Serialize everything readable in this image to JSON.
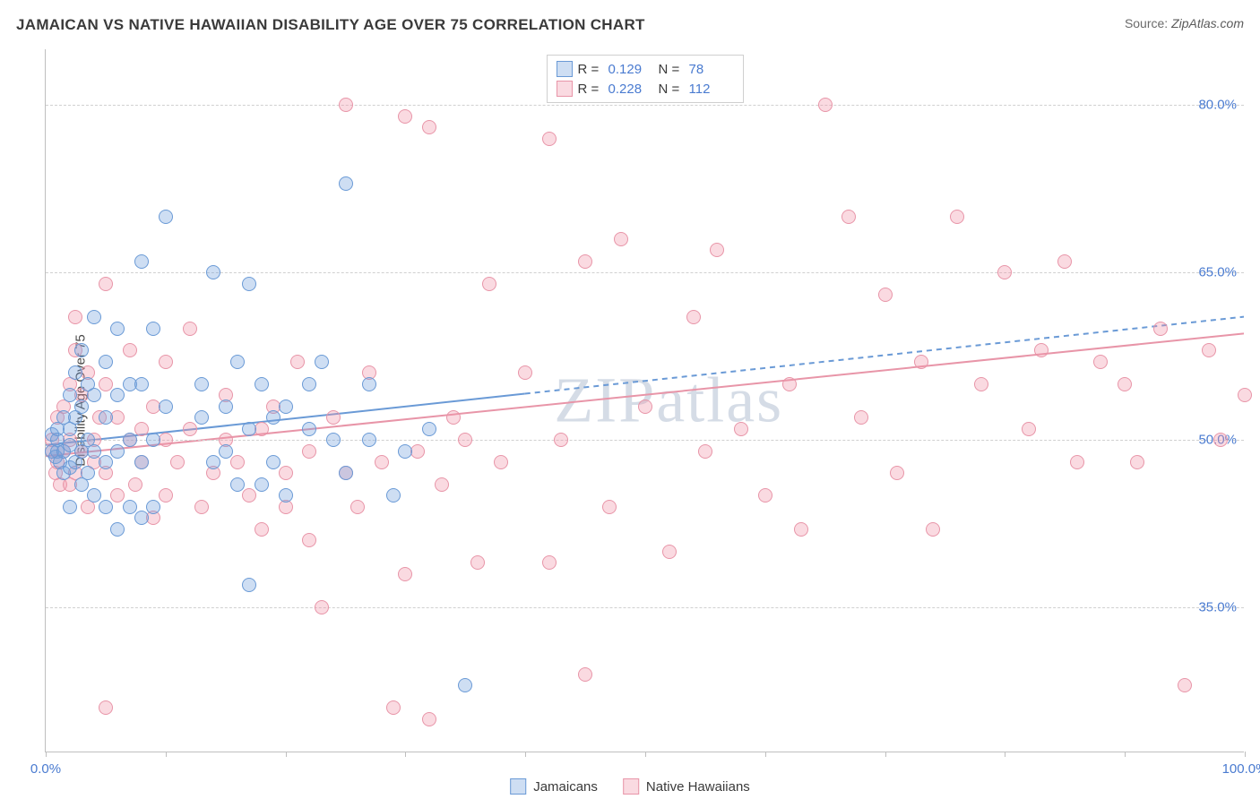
{
  "title": "JAMAICAN VS NATIVE HAWAIIAN DISABILITY AGE OVER 75 CORRELATION CHART",
  "source_label": "Source:",
  "source_value": "ZipAtlas.com",
  "watermark": "ZIPatlas",
  "ylabel": "Disability Age Over 75",
  "chart": {
    "type": "scatter",
    "background_color": "#ffffff",
    "grid_color": "#d0d0d0",
    "axis_color": "#bfbfbf",
    "tick_font_color": "#4a7bd0",
    "tick_fontsize": 15,
    "title_fontsize": 17,
    "label_fontsize": 15,
    "xlim": [
      0,
      100
    ],
    "ylim": [
      22,
      85
    ],
    "x_ticks": [
      0,
      10,
      20,
      30,
      40,
      50,
      60,
      70,
      80,
      90,
      100
    ],
    "x_tick_labels": {
      "0": "0.0%",
      "100": "100.0%"
    },
    "y_ticks": [
      35,
      50,
      65,
      80
    ],
    "y_tick_labels": {
      "35": "35.0%",
      "50": "50.0%",
      "65": "65.0%",
      "80": "80.0%"
    },
    "marker_radius": 8,
    "marker_border_width": 1,
    "trend_line_width": 2
  },
  "series": [
    {
      "name": "Jamaicans",
      "fill": "rgba(115,160,220,0.35)",
      "stroke": "#6a9ad6",
      "R": "0.129",
      "N": "78",
      "trend": {
        "y_at_x0": 49.5,
        "y_at_x100": 61.0,
        "solid_until_x": 40
      },
      "points": [
        [
          0.5,
          49
        ],
        [
          0.5,
          50.5
        ],
        [
          0.8,
          48.5
        ],
        [
          1,
          51
        ],
        [
          1,
          50
        ],
        [
          1,
          49
        ],
        [
          1.2,
          48
        ],
        [
          1.5,
          52
        ],
        [
          1.5,
          49
        ],
        [
          1.5,
          47
        ],
        [
          2,
          54
        ],
        [
          2,
          51
        ],
        [
          2,
          49.5
        ],
        [
          2,
          47.5
        ],
        [
          2,
          44
        ],
        [
          2.5,
          56
        ],
        [
          2.5,
          52
        ],
        [
          2.5,
          48
        ],
        [
          3,
          58
        ],
        [
          3,
          53
        ],
        [
          3,
          49
        ],
        [
          3,
          46
        ],
        [
          3.5,
          55
        ],
        [
          3.5,
          50
        ],
        [
          3.5,
          47
        ],
        [
          4,
          61
        ],
        [
          4,
          54
        ],
        [
          4,
          49
        ],
        [
          4,
          45
        ],
        [
          5,
          57
        ],
        [
          5,
          52
        ],
        [
          5,
          48
        ],
        [
          5,
          44
        ],
        [
          6,
          60
        ],
        [
          6,
          54
        ],
        [
          6,
          49
        ],
        [
          6,
          42
        ],
        [
          7,
          55
        ],
        [
          7,
          50
        ],
        [
          7,
          44
        ],
        [
          8,
          66
        ],
        [
          8,
          55
        ],
        [
          8,
          48
        ],
        [
          8,
          43
        ],
        [
          9,
          60
        ],
        [
          9,
          50
        ],
        [
          9,
          44
        ],
        [
          10,
          70
        ],
        [
          10,
          53
        ],
        [
          13,
          52
        ],
        [
          13,
          55
        ],
        [
          14,
          65
        ],
        [
          14,
          48
        ],
        [
          15,
          49
        ],
        [
          15,
          53
        ],
        [
          16,
          57
        ],
        [
          16,
          46
        ],
        [
          17,
          64
        ],
        [
          17,
          51
        ],
        [
          17,
          37
        ],
        [
          18,
          55
        ],
        [
          18,
          46
        ],
        [
          19,
          52
        ],
        [
          19,
          48
        ],
        [
          20,
          53
        ],
        [
          20,
          45
        ],
        [
          22,
          51
        ],
        [
          22,
          55
        ],
        [
          23,
          57
        ],
        [
          24,
          50
        ],
        [
          25,
          73
        ],
        [
          25,
          47
        ],
        [
          27,
          50
        ],
        [
          27,
          55
        ],
        [
          29,
          45
        ],
        [
          30,
          49
        ],
        [
          32,
          51
        ],
        [
          35,
          28
        ]
      ]
    },
    {
      "name": "Native Hawaiians",
      "fill": "rgba(240,150,170,0.35)",
      "stroke": "#e895a8",
      "R": "0.228",
      "N": "112",
      "trend": {
        "y_at_x0": 48.5,
        "y_at_x100": 59.5,
        "solid_until_x": 100
      },
      "points": [
        [
          0.5,
          49
        ],
        [
          0.5,
          50
        ],
        [
          0.8,
          47
        ],
        [
          1,
          52
        ],
        [
          1,
          48
        ],
        [
          1.2,
          46
        ],
        [
          1.5,
          53
        ],
        [
          1.5,
          49
        ],
        [
          2,
          55
        ],
        [
          2,
          50
        ],
        [
          2,
          46
        ],
        [
          2.5,
          58
        ],
        [
          2.5,
          61
        ],
        [
          2.5,
          47
        ],
        [
          3,
          49
        ],
        [
          3,
          54
        ],
        [
          3.5,
          56
        ],
        [
          3.5,
          44
        ],
        [
          4,
          50
        ],
        [
          4,
          48
        ],
        [
          4.5,
          52
        ],
        [
          5,
          55
        ],
        [
          5,
          47
        ],
        [
          5,
          64
        ],
        [
          6,
          52
        ],
        [
          6,
          45
        ],
        [
          7,
          50
        ],
        [
          7,
          58
        ],
        [
          7.5,
          46
        ],
        [
          8,
          51
        ],
        [
          8,
          48
        ],
        [
          9,
          43
        ],
        [
          9,
          53
        ],
        [
          10,
          50
        ],
        [
          10,
          45
        ],
        [
          10,
          57
        ],
        [
          11,
          48
        ],
        [
          12,
          51
        ],
        [
          12,
          60
        ],
        [
          13,
          44
        ],
        [
          14,
          47
        ],
        [
          15,
          50
        ],
        [
          15,
          54
        ],
        [
          16,
          48
        ],
        [
          17,
          45
        ],
        [
          18,
          51
        ],
        [
          18,
          42
        ],
        [
          19,
          53
        ],
        [
          20,
          44
        ],
        [
          20,
          47
        ],
        [
          21,
          57
        ],
        [
          22,
          41
        ],
        [
          22,
          49
        ],
        [
          23,
          35
        ],
        [
          24,
          52
        ],
        [
          25,
          80
        ],
        [
          25,
          47
        ],
        [
          26,
          44
        ],
        [
          27,
          56
        ],
        [
          28,
          48
        ],
        [
          29,
          26
        ],
        [
          30,
          79
        ],
        [
          30,
          38
        ],
        [
          31,
          49
        ],
        [
          32,
          78
        ],
        [
          32,
          25
        ],
        [
          33,
          46
        ],
        [
          34,
          52
        ],
        [
          35,
          50
        ],
        [
          36,
          39
        ],
        [
          37,
          64
        ],
        [
          38,
          48
        ],
        [
          40,
          56
        ],
        [
          42,
          77
        ],
        [
          42,
          39
        ],
        [
          43,
          50
        ],
        [
          45,
          66
        ],
        [
          45,
          29
        ],
        [
          47,
          44
        ],
        [
          48,
          68
        ],
        [
          50,
          53
        ],
        [
          52,
          40
        ],
        [
          54,
          61
        ],
        [
          55,
          49
        ],
        [
          56,
          67
        ],
        [
          58,
          51
        ],
        [
          60,
          45
        ],
        [
          62,
          55
        ],
        [
          63,
          42
        ],
        [
          65,
          80
        ],
        [
          67,
          70
        ],
        [
          68,
          52
        ],
        [
          70,
          63
        ],
        [
          71,
          47
        ],
        [
          73,
          57
        ],
        [
          74,
          42
        ],
        [
          76,
          70
        ],
        [
          78,
          55
        ],
        [
          80,
          65
        ],
        [
          82,
          51
        ],
        [
          83,
          58
        ],
        [
          85,
          66
        ],
        [
          86,
          48
        ],
        [
          88,
          57
        ],
        [
          90,
          55
        ],
        [
          91,
          48
        ],
        [
          93,
          60
        ],
        [
          95,
          28
        ],
        [
          97,
          58
        ],
        [
          98,
          50
        ],
        [
          100,
          54
        ],
        [
          5,
          26
        ]
      ]
    }
  ],
  "legend_label_jamaicans": "Jamaicans",
  "legend_label_hawaiians": "Native Hawaiians",
  "stats_labels": {
    "R": "R  =",
    "N": "N  ="
  }
}
